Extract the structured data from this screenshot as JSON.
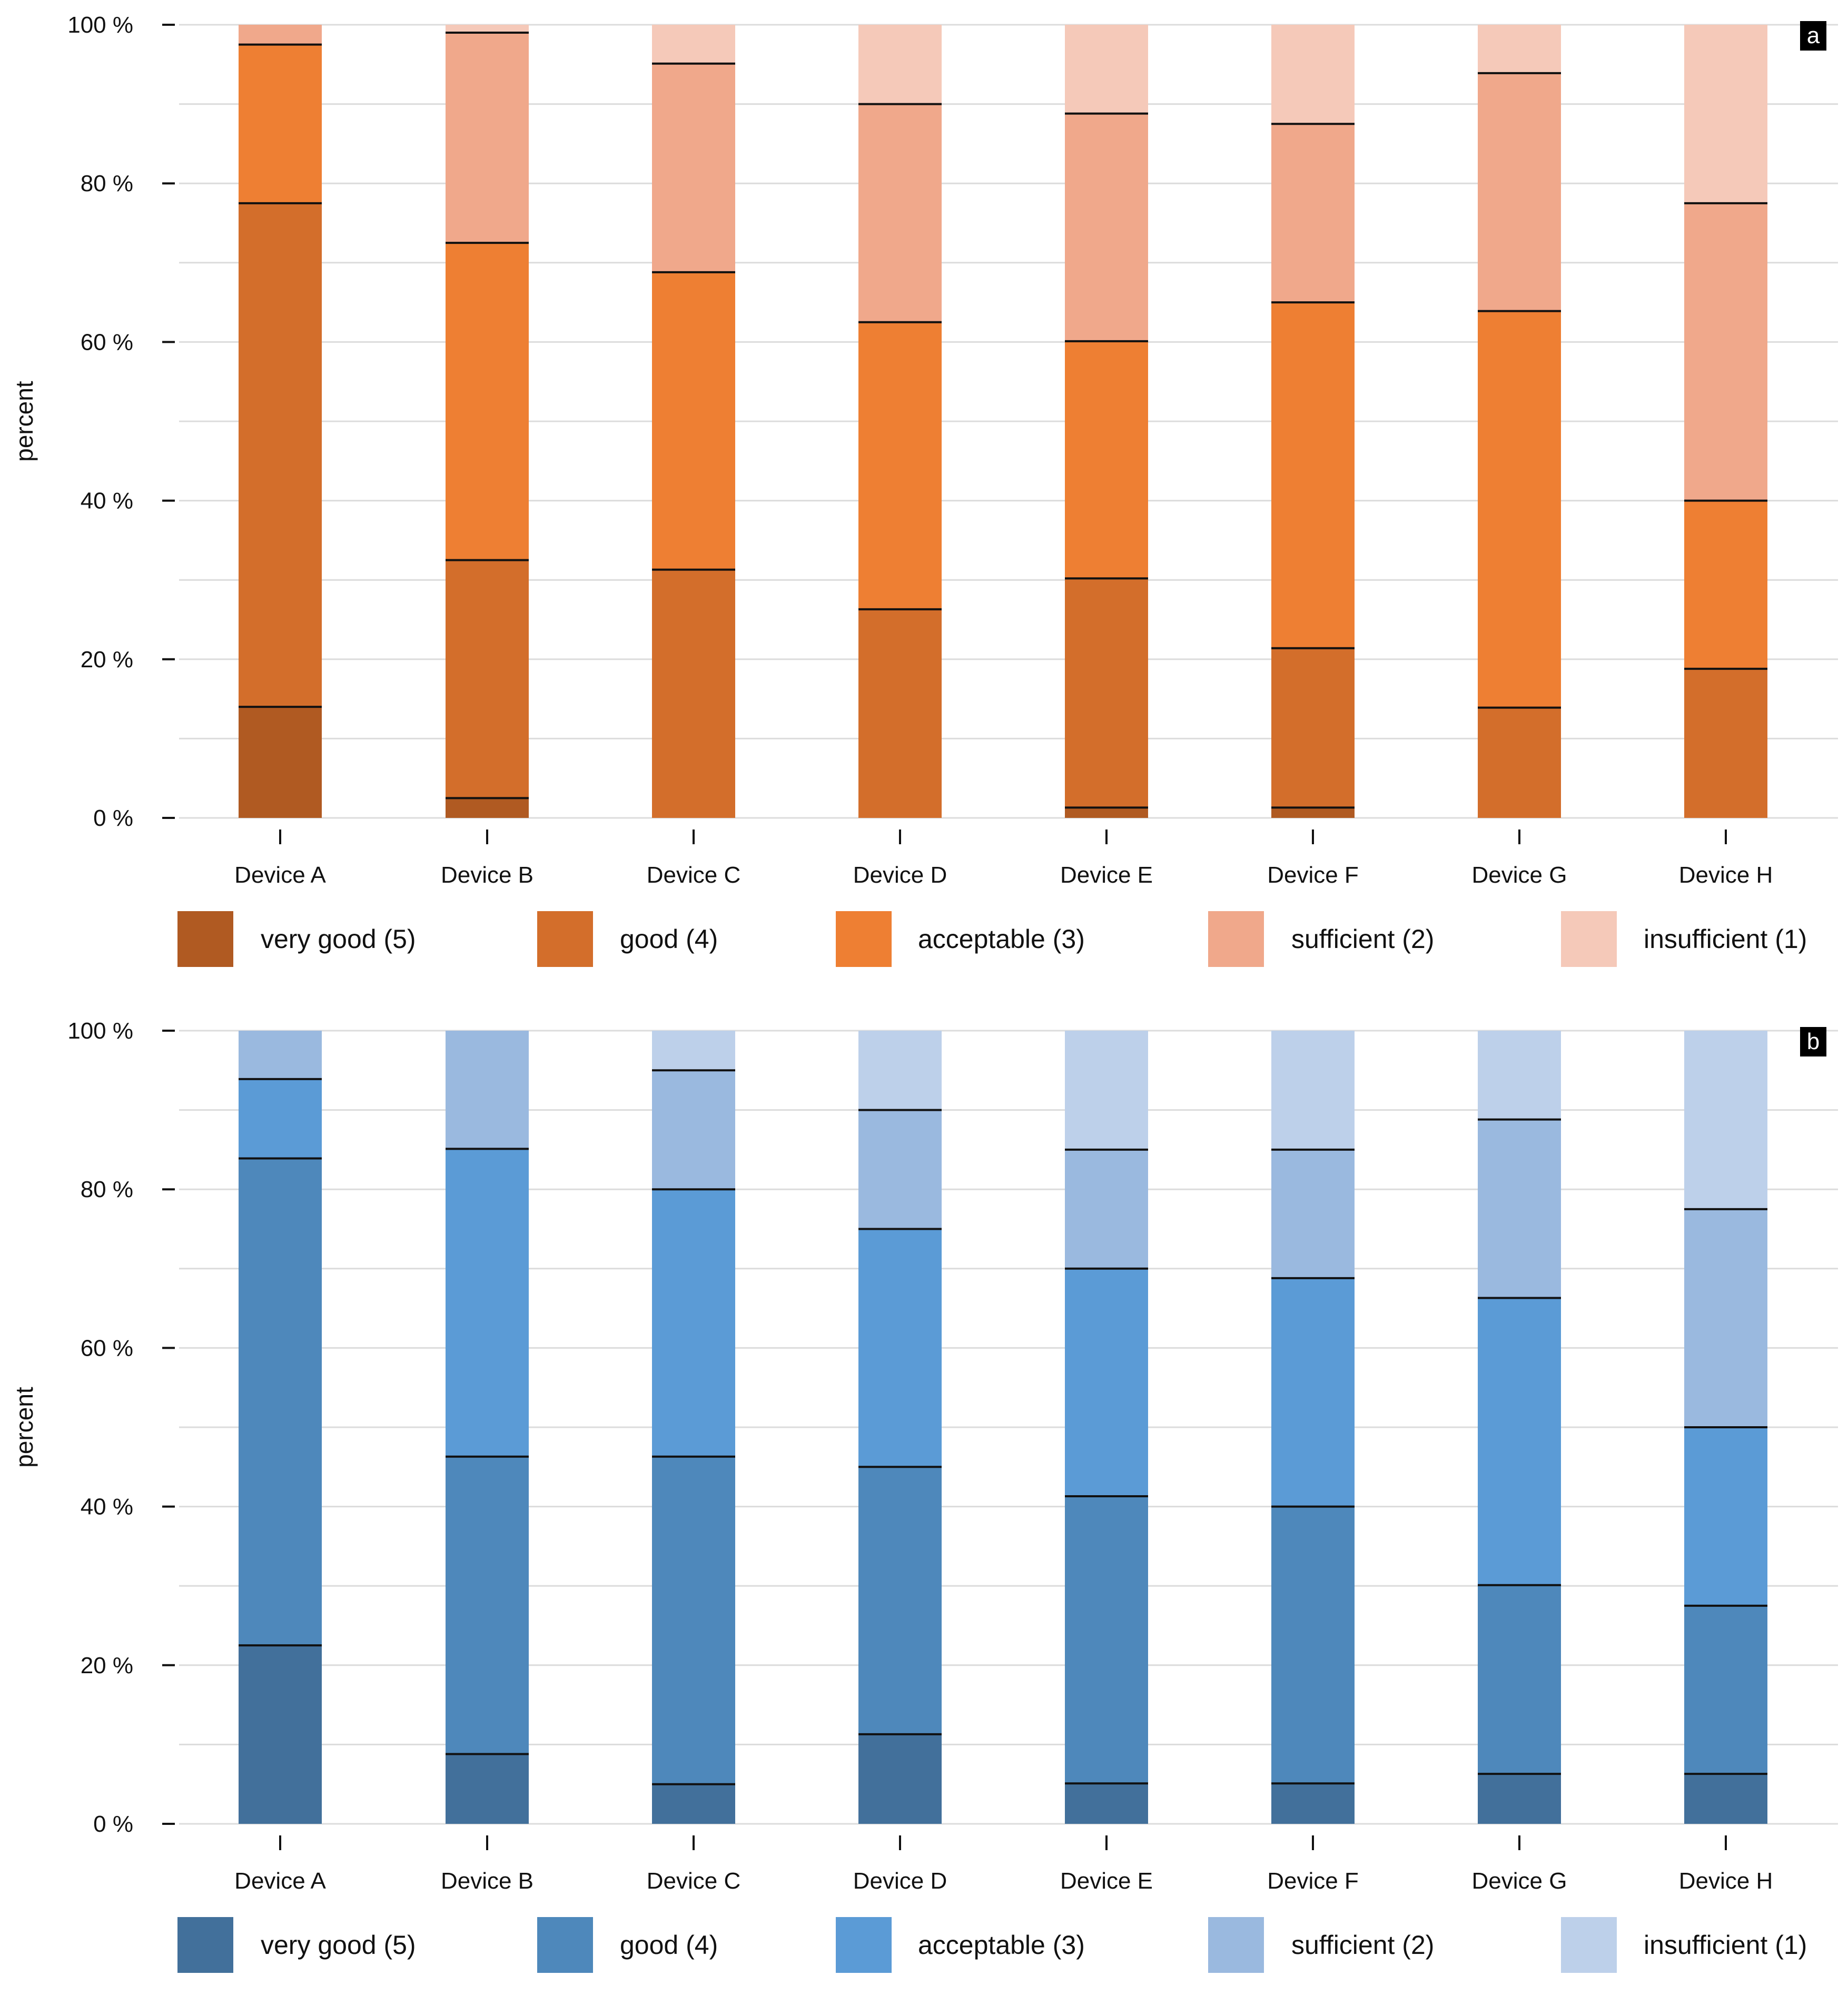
{
  "chart_data": [
    {
      "type": "bar",
      "stacked": true,
      "panel_label": "a",
      "ylabel": "percent",
      "ylim": [
        0,
        100
      ],
      "yticks": [
        "0 %",
        "20 %",
        "40 %",
        "60 %",
        "80 %",
        "100 %"
      ],
      "grid": true,
      "legend_position": "bottom",
      "categories": [
        "Device A",
        "Device B",
        "Device C",
        "Device D",
        "Device E",
        "Device F",
        "Device G",
        "Device H"
      ],
      "series": [
        {
          "name": "very good (5)",
          "color": "#b05a22",
          "values": [
            14,
            2.5,
            0,
            0,
            1.3,
            1.3,
            0,
            0
          ]
        },
        {
          "name": "good (4)",
          "color": "#d36e2b",
          "values": [
            63.5,
            30,
            31.3,
            26.3,
            28.9,
            20.1,
            13.9,
            18.8
          ]
        },
        {
          "name": "acceptable (3)",
          "color": "#ee7f33",
          "values": [
            20,
            40,
            37.5,
            36.2,
            29.9,
            43.6,
            50,
            21.2
          ]
        },
        {
          "name": "sufficient (2)",
          "color": "#f0a88b",
          "values": [
            2.5,
            26.5,
            26.3,
            27.5,
            28.7,
            22.5,
            30,
            37.5
          ]
        },
        {
          "name": "insufficient (1)",
          "color": "#f5c9b9",
          "values": [
            0,
            1,
            4.9,
            10,
            11.2,
            12.5,
            6.1,
            22.5
          ]
        }
      ]
    },
    {
      "type": "bar",
      "stacked": true,
      "panel_label": "b",
      "ylabel": "percent",
      "ylim": [
        0,
        100
      ],
      "yticks": [
        "0 %",
        "20 %",
        "40 %",
        "60 %",
        "80 %",
        "100 %"
      ],
      "grid": true,
      "legend_position": "bottom",
      "categories": [
        "Device A",
        "Device B",
        "Device C",
        "Device D",
        "Device E",
        "Device F",
        "Device G",
        "Device H"
      ],
      "series": [
        {
          "name": "very good (5)",
          "color": "#42709b",
          "values": [
            22.5,
            8.8,
            5,
            11.3,
            5.1,
            5.1,
            6.3,
            6.3
          ]
        },
        {
          "name": "good (4)",
          "color": "#4e88bb",
          "values": [
            61.4,
            37.5,
            41.3,
            33.7,
            36.2,
            34.9,
            23.8,
            21.2
          ]
        },
        {
          "name": "acceptable (3)",
          "color": "#5b9bd6",
          "values": [
            10,
            38.8,
            33.7,
            30,
            28.7,
            28.8,
            36.2,
            22.5
          ]
        },
        {
          "name": "sufficient (2)",
          "color": "#9ab9df",
          "values": [
            6.1,
            14.9,
            15,
            15,
            15,
            16.2,
            22.5,
            27.5
          ]
        },
        {
          "name": "insufficient (1)",
          "color": "#bdd0ea",
          "values": [
            0,
            0,
            5,
            10,
            15,
            15,
            11.2,
            22.5
          ]
        }
      ]
    }
  ]
}
